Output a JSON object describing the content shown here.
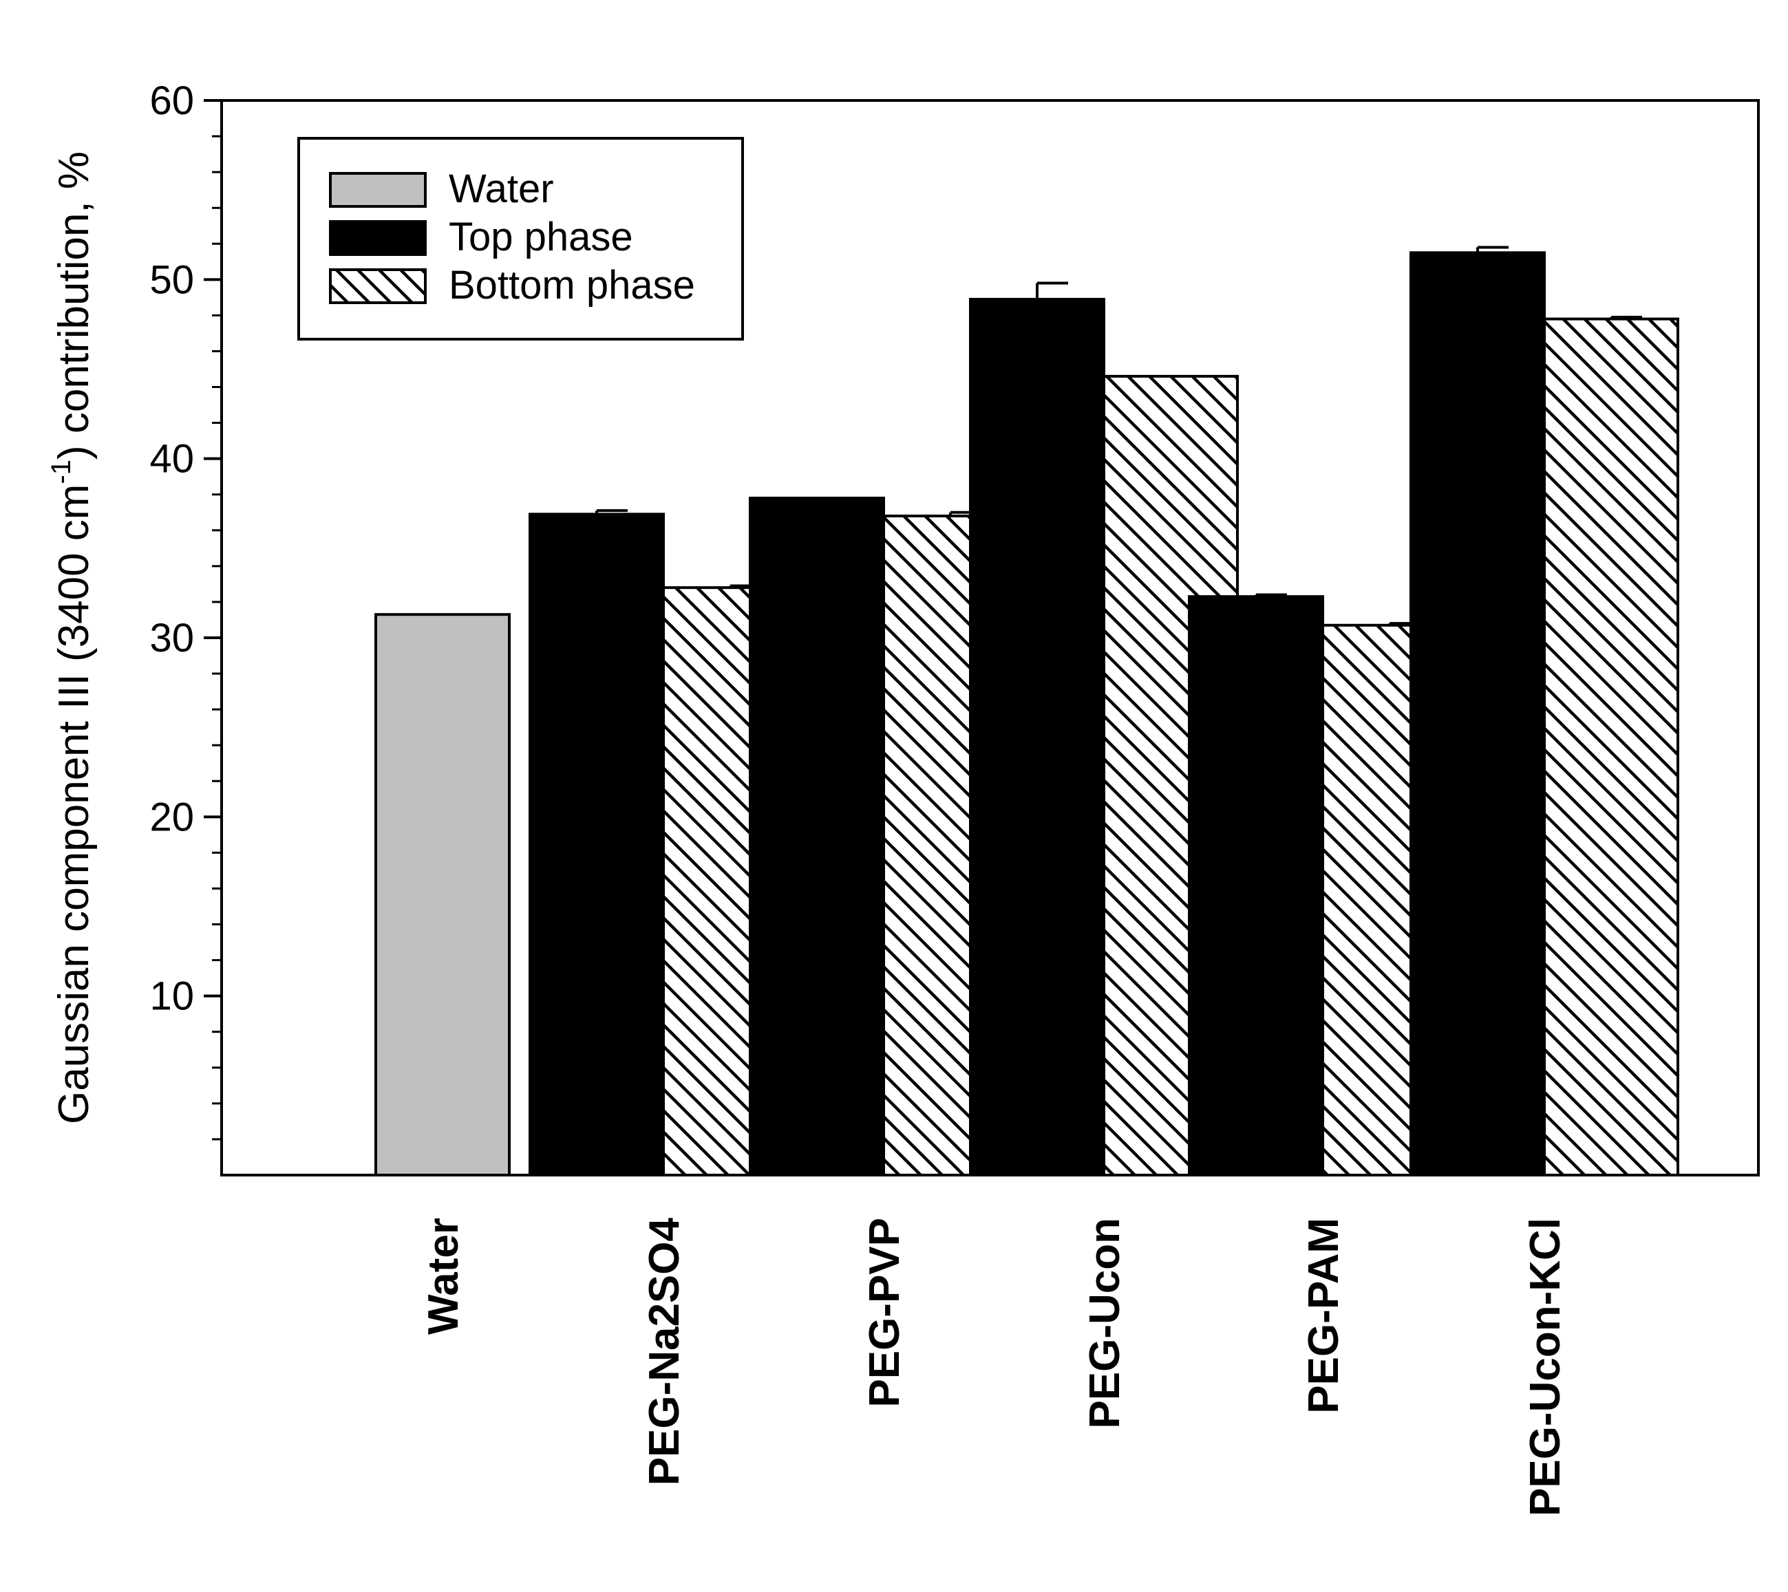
{
  "chart_data": {
    "type": "bar",
    "title": "",
    "xlabel": "",
    "ylabel": {
      "prefix": "Gaussian component  III (3400 cm",
      "superscript": "-1",
      "suffix": ") contribution, %"
    },
    "ylim": [
      0,
      60
    ],
    "yticks": [
      10,
      20,
      30,
      40,
      50,
      60
    ],
    "yminor_step": 2,
    "categories": [
      "Water",
      "PEG-Na2SO4",
      "PEG-PVP",
      "PEG-Ucon",
      "PEG-PAM",
      "PEG-Ucon-KCl"
    ],
    "series": [
      {
        "name": "Water",
        "pattern": "solid-gray",
        "color": "#c0c0c0",
        "values": [
          31.3,
          null,
          null,
          null,
          null,
          null
        ],
        "errors": [
          0,
          null,
          null,
          null,
          null,
          null
        ]
      },
      {
        "name": "Top phase",
        "pattern": "solid-black",
        "color": "#000000",
        "values": [
          null,
          36.9,
          37.8,
          48.9,
          32.3,
          51.5
        ],
        "errors": [
          null,
          0.2,
          0.0,
          0.9,
          0.1,
          0.3
        ]
      },
      {
        "name": "Bottom phase",
        "pattern": "hatched",
        "color": "#ffffff",
        "values": [
          null,
          32.8,
          36.8,
          44.6,
          30.7,
          47.8
        ],
        "errors": [
          null,
          0.1,
          0.2,
          0.0,
          0.1,
          0.1
        ]
      }
    ],
    "legend_position": "top-left",
    "grid": false
  }
}
